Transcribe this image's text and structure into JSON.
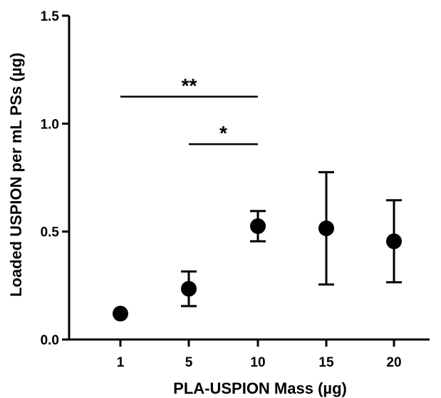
{
  "chart_data": {
    "type": "scatter",
    "xlabel": "PLA-USPION Mass (µg)",
    "ylabel": "Loaded  USPION per mL PSs (µg)",
    "categories": [
      "1",
      "5",
      "10",
      "15",
      "20"
    ],
    "y_ticks": [
      "0.0",
      "0.5",
      "1.0",
      "1.5"
    ],
    "ylim": [
      0,
      1.5
    ],
    "series": [
      {
        "values": [
          0.12,
          0.235,
          0.525,
          0.515,
          0.455
        ],
        "error_low": [
          0.12,
          0.155,
          0.455,
          0.255,
          0.265
        ],
        "error_high": [
          0.12,
          0.315,
          0.595,
          0.775,
          0.645
        ]
      }
    ],
    "significance": [
      {
        "from": "1",
        "to": "10",
        "y": 1.125,
        "label": "**"
      },
      {
        "from": "5",
        "to": "10",
        "y": 0.905,
        "label": "*"
      }
    ],
    "grid": false,
    "legend": "none"
  }
}
